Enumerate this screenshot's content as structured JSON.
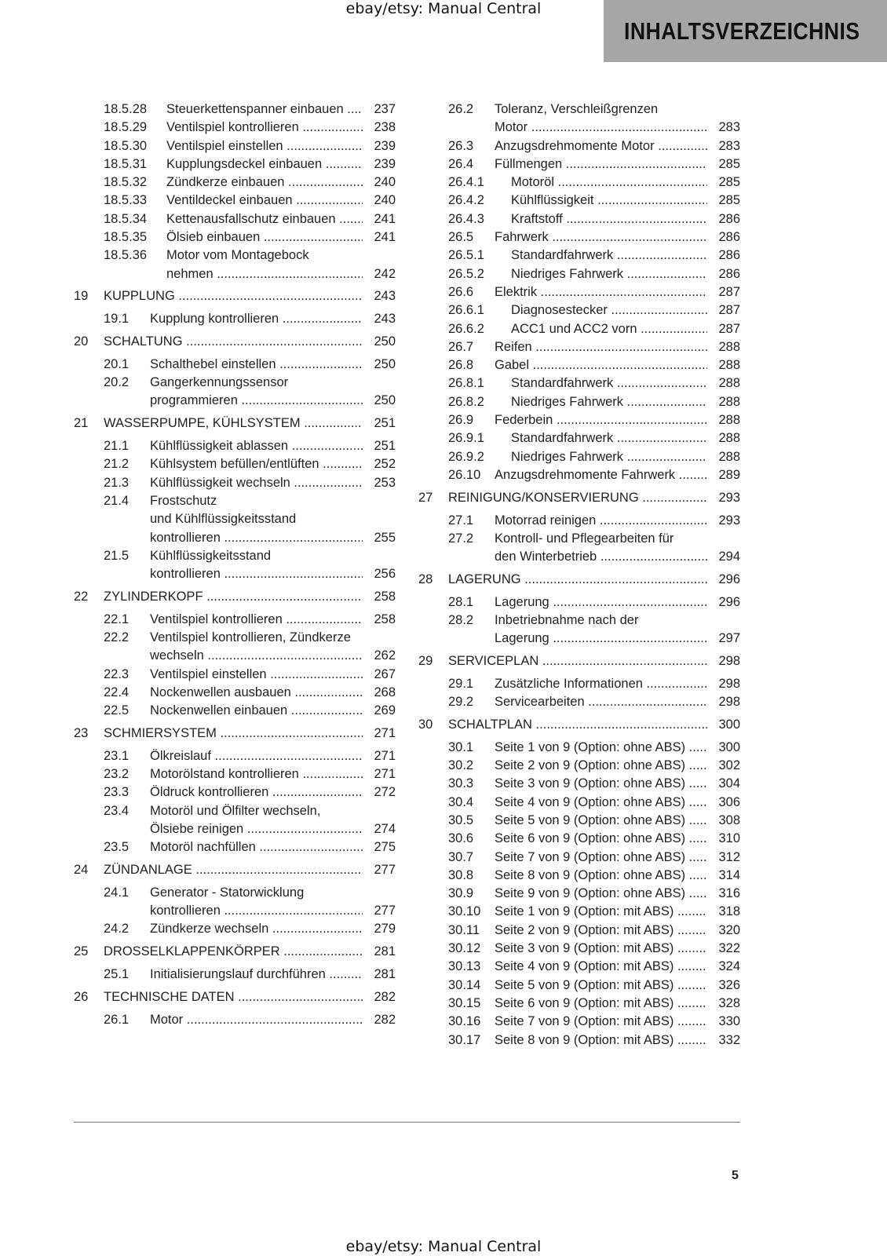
{
  "watermark_top": "ebay/etsy: Manual Central",
  "watermark_bottom": "ebay/etsy: Manual Central",
  "header": {
    "title": "INHALTSVERZEICHNIS",
    "background": "#a6a6a6"
  },
  "page_number": "5",
  "columns": [
    [
      {
        "level": "sub",
        "num": "18.5.28",
        "lines": [
          "Steuerkettenspanner einbauen"
        ],
        "page": "237"
      },
      {
        "level": "sub",
        "num": "18.5.29",
        "lines": [
          "Ventilspiel kontrollieren"
        ],
        "page": "238"
      },
      {
        "level": "sub",
        "num": "18.5.30",
        "lines": [
          "Ventilspiel einstellen"
        ],
        "page": "239"
      },
      {
        "level": "sub",
        "num": "18.5.31",
        "lines": [
          "Kupplungsdeckel einbauen"
        ],
        "page": "239"
      },
      {
        "level": "sub",
        "num": "18.5.32",
        "lines": [
          "Zündkerze einbauen"
        ],
        "page": "240"
      },
      {
        "level": "sub",
        "num": "18.5.33",
        "lines": [
          "Ventildeckel einbauen"
        ],
        "page": "240"
      },
      {
        "level": "sub",
        "num": "18.5.34",
        "lines": [
          "Kettenausfallschutz einbauen"
        ],
        "page": "241"
      },
      {
        "level": "sub",
        "num": "18.5.35",
        "lines": [
          "Ölsieb einbauen"
        ],
        "page": "241"
      },
      {
        "level": "sub",
        "num": "18.5.36",
        "lines": [
          "Motor vom Montagebock",
          "nehmen"
        ],
        "page": "242"
      },
      {
        "level": "chapter",
        "num": "19",
        "lines": [
          "KUPPLUNG"
        ],
        "page": "243"
      },
      {
        "level": "section",
        "num": "19.1",
        "lines": [
          "Kupplung kontrollieren"
        ],
        "page": "243"
      },
      {
        "level": "chapter",
        "num": "20",
        "lines": [
          "SCHALTUNG"
        ],
        "page": "250"
      },
      {
        "level": "section",
        "num": "20.1",
        "lines": [
          "Schalthebel einstellen"
        ],
        "page": "250"
      },
      {
        "level": "section",
        "num": "20.2",
        "lines": [
          "Gangerkennungssensor",
          "programmieren"
        ],
        "page": "250"
      },
      {
        "level": "chapter",
        "num": "21",
        "lines": [
          "WASSERPUMPE, KÜHLSYSTEM"
        ],
        "page": "251"
      },
      {
        "level": "section",
        "num": "21.1",
        "lines": [
          "Kühlflüssigkeit ablassen"
        ],
        "page": "251"
      },
      {
        "level": "section",
        "num": "21.2",
        "lines": [
          "Kühlsystem befüllen/entlüften"
        ],
        "page": "252"
      },
      {
        "level": "section",
        "num": "21.3",
        "lines": [
          "Kühlflüssigkeit wechseln"
        ],
        "page": "253"
      },
      {
        "level": "section",
        "num": "21.4",
        "lines": [
          "Frostschutz",
          "und Kühlflüssigkeitsstand",
          "kontrollieren"
        ],
        "page": "255"
      },
      {
        "level": "section",
        "num": "21.5",
        "lines": [
          "Kühlflüssigkeitsstand",
          "kontrollieren"
        ],
        "page": "256"
      },
      {
        "level": "chapter",
        "num": "22",
        "lines": [
          "ZYLINDERKOPF"
        ],
        "page": "258"
      },
      {
        "level": "section",
        "num": "22.1",
        "lines": [
          "Ventilspiel kontrollieren"
        ],
        "page": "258"
      },
      {
        "level": "section",
        "num": "22.2",
        "lines": [
          "Ventilspiel kontrollieren, Zündkerze",
          "wechseln"
        ],
        "page": "262"
      },
      {
        "level": "section",
        "num": "22.3",
        "lines": [
          "Ventilspiel einstellen"
        ],
        "page": "267"
      },
      {
        "level": "section",
        "num": "22.4",
        "lines": [
          "Nockenwellen ausbauen"
        ],
        "page": "268"
      },
      {
        "level": "section",
        "num": "22.5",
        "lines": [
          "Nockenwellen einbauen"
        ],
        "page": "269"
      },
      {
        "level": "chapter",
        "num": "23",
        "lines": [
          "SCHMIERSYSTEM"
        ],
        "page": "271"
      },
      {
        "level": "section",
        "num": "23.1",
        "lines": [
          "Ölkreislauf"
        ],
        "page": "271"
      },
      {
        "level": "section",
        "num": "23.2",
        "lines": [
          "Motorölstand kontrollieren"
        ],
        "page": "271"
      },
      {
        "level": "section",
        "num": "23.3",
        "lines": [
          "Öldruck kontrollieren"
        ],
        "page": "272"
      },
      {
        "level": "section",
        "num": "23.4",
        "lines": [
          "Motoröl und Ölfilter wechseln,",
          "Ölsiebe reinigen"
        ],
        "page": "274"
      },
      {
        "level": "section",
        "num": "23.5",
        "lines": [
          "Motoröl nachfüllen"
        ],
        "page": "275"
      },
      {
        "level": "chapter",
        "num": "24",
        "lines": [
          "ZÜNDANLAGE"
        ],
        "page": "277"
      },
      {
        "level": "section",
        "num": "24.1",
        "lines": [
          "Generator - Statorwicklung",
          "kontrollieren"
        ],
        "page": "277"
      },
      {
        "level": "section",
        "num": "24.2",
        "lines": [
          "Zündkerze wechseln"
        ],
        "page": "279"
      },
      {
        "level": "chapter",
        "num": "25",
        "lines": [
          "DROSSELKLAPPENKÖRPER"
        ],
        "page": "281"
      },
      {
        "level": "section",
        "num": "25.1",
        "lines": [
          "Initialisierungslauf durchführen"
        ],
        "page": "281"
      },
      {
        "level": "chapter",
        "num": "26",
        "lines": [
          "TECHNISCHE DATEN"
        ],
        "page": "282"
      },
      {
        "level": "section",
        "num": "26.1",
        "lines": [
          "Motor"
        ],
        "page": "282"
      }
    ],
    [
      {
        "level": "section",
        "num": "26.2",
        "lines": [
          "Toleranz, Verschleißgrenzen",
          "Motor"
        ],
        "page": "283"
      },
      {
        "level": "section",
        "num": "26.3",
        "lines": [
          "Anzugsdrehmomente Motor"
        ],
        "page": "283"
      },
      {
        "level": "section",
        "num": "26.4",
        "lines": [
          "Füllmengen"
        ],
        "page": "285"
      },
      {
        "level": "sub",
        "num": "26.4.1",
        "lines": [
          "Motoröl"
        ],
        "page": "285"
      },
      {
        "level": "sub",
        "num": "26.4.2",
        "lines": [
          "Kühlflüssigkeit"
        ],
        "page": "285"
      },
      {
        "level": "sub",
        "num": "26.4.3",
        "lines": [
          "Kraftstoff"
        ],
        "page": "286"
      },
      {
        "level": "section",
        "num": "26.5",
        "lines": [
          "Fahrwerk"
        ],
        "page": "286"
      },
      {
        "level": "sub",
        "num": "26.5.1",
        "lines": [
          "Standardfahrwerk"
        ],
        "page": "286"
      },
      {
        "level": "sub",
        "num": "26.5.2",
        "lines": [
          "Niedriges Fahrwerk"
        ],
        "page": "286"
      },
      {
        "level": "section",
        "num": "26.6",
        "lines": [
          "Elektrik"
        ],
        "page": "287"
      },
      {
        "level": "sub",
        "num": "26.6.1",
        "lines": [
          "Diagnosestecker"
        ],
        "page": "287"
      },
      {
        "level": "sub",
        "num": "26.6.2",
        "lines": [
          "ACC1 und ACC2 vorn"
        ],
        "page": "287"
      },
      {
        "level": "section",
        "num": "26.7",
        "lines": [
          "Reifen"
        ],
        "page": "288"
      },
      {
        "level": "section",
        "num": "26.8",
        "lines": [
          "Gabel"
        ],
        "page": "288"
      },
      {
        "level": "sub",
        "num": "26.8.1",
        "lines": [
          "Standardfahrwerk"
        ],
        "page": "288"
      },
      {
        "level": "sub",
        "num": "26.8.2",
        "lines": [
          "Niedriges Fahrwerk"
        ],
        "page": "288"
      },
      {
        "level": "section",
        "num": "26.9",
        "lines": [
          "Federbein"
        ],
        "page": "288"
      },
      {
        "level": "sub",
        "num": "26.9.1",
        "lines": [
          "Standardfahrwerk"
        ],
        "page": "288"
      },
      {
        "level": "sub",
        "num": "26.9.2",
        "lines": [
          "Niedriges Fahrwerk"
        ],
        "page": "288"
      },
      {
        "level": "section",
        "num": "26.10",
        "lines": [
          "Anzugsdrehmomente Fahrwerk"
        ],
        "page": "289"
      },
      {
        "level": "chapter",
        "num": "27",
        "lines": [
          "REINIGUNG/KONSERVIERUNG"
        ],
        "page": "293"
      },
      {
        "level": "section",
        "num": "27.1",
        "lines": [
          "Motorrad reinigen"
        ],
        "page": "293"
      },
      {
        "level": "section",
        "num": "27.2",
        "lines": [
          "Kontroll- und Pflegearbeiten für",
          "den Winterbetrieb"
        ],
        "page": "294"
      },
      {
        "level": "chapter",
        "num": "28",
        "lines": [
          "LAGERUNG"
        ],
        "page": "296"
      },
      {
        "level": "section",
        "num": "28.1",
        "lines": [
          "Lagerung"
        ],
        "page": "296"
      },
      {
        "level": "section",
        "num": "28.2",
        "lines": [
          "Inbetriebnahme nach der",
          "Lagerung"
        ],
        "page": "297"
      },
      {
        "level": "chapter",
        "num": "29",
        "lines": [
          "SERVICEPLAN"
        ],
        "page": "298"
      },
      {
        "level": "section",
        "num": "29.1",
        "lines": [
          "Zusätzliche Informationen"
        ],
        "page": "298"
      },
      {
        "level": "section",
        "num": "29.2",
        "lines": [
          "Servicearbeiten"
        ],
        "page": "298"
      },
      {
        "level": "chapter",
        "num": "30",
        "lines": [
          "SCHALTPLAN"
        ],
        "page": "300"
      },
      {
        "level": "section",
        "num": "30.1",
        "lines": [
          "Seite 1 von 9 (Option: ohne ABS)"
        ],
        "page": "300"
      },
      {
        "level": "section",
        "num": "30.2",
        "lines": [
          "Seite 2 von 9 (Option: ohne ABS)"
        ],
        "page": "302"
      },
      {
        "level": "section",
        "num": "30.3",
        "lines": [
          "Seite 3 von 9 (Option: ohne ABS)"
        ],
        "page": "304"
      },
      {
        "level": "section",
        "num": "30.4",
        "lines": [
          "Seite 4 von 9 (Option: ohne ABS)"
        ],
        "page": "306"
      },
      {
        "level": "section",
        "num": "30.5",
        "lines": [
          "Seite 5 von 9 (Option: ohne ABS)"
        ],
        "page": "308"
      },
      {
        "level": "section",
        "num": "30.6",
        "lines": [
          "Seite 6 von 9 (Option: ohne ABS)"
        ],
        "page": "310"
      },
      {
        "level": "section",
        "num": "30.7",
        "lines": [
          "Seite 7 von 9 (Option: ohne ABS)"
        ],
        "page": "312"
      },
      {
        "level": "section",
        "num": "30.8",
        "lines": [
          "Seite 8 von 9 (Option: ohne ABS)"
        ],
        "page": "314"
      },
      {
        "level": "section",
        "num": "30.9",
        "lines": [
          "Seite 9 von 9 (Option: ohne ABS)"
        ],
        "page": "316"
      },
      {
        "level": "section",
        "num": "30.10",
        "lines": [
          "Seite 1 von 9 (Option: mit ABS)"
        ],
        "page": "318"
      },
      {
        "level": "section",
        "num": "30.11",
        "lines": [
          "Seite 2 von 9 (Option: mit ABS)"
        ],
        "page": "320"
      },
      {
        "level": "section",
        "num": "30.12",
        "lines": [
          "Seite 3 von 9 (Option: mit ABS)"
        ],
        "page": "322"
      },
      {
        "level": "section",
        "num": "30.13",
        "lines": [
          "Seite 4 von 9 (Option: mit ABS)"
        ],
        "page": "324"
      },
      {
        "level": "section",
        "num": "30.14",
        "lines": [
          "Seite 5 von 9 (Option: mit ABS)"
        ],
        "page": "326"
      },
      {
        "level": "section",
        "num": "30.15",
        "lines": [
          "Seite 6 von 9 (Option: mit ABS)"
        ],
        "page": "328"
      },
      {
        "level": "section",
        "num": "30.16",
        "lines": [
          "Seite 7 von 9 (Option: mit ABS)"
        ],
        "page": "330"
      },
      {
        "level": "section",
        "num": "30.17",
        "lines": [
          "Seite 8 von 9 (Option: mit ABS)"
        ],
        "page": "332"
      }
    ]
  ]
}
